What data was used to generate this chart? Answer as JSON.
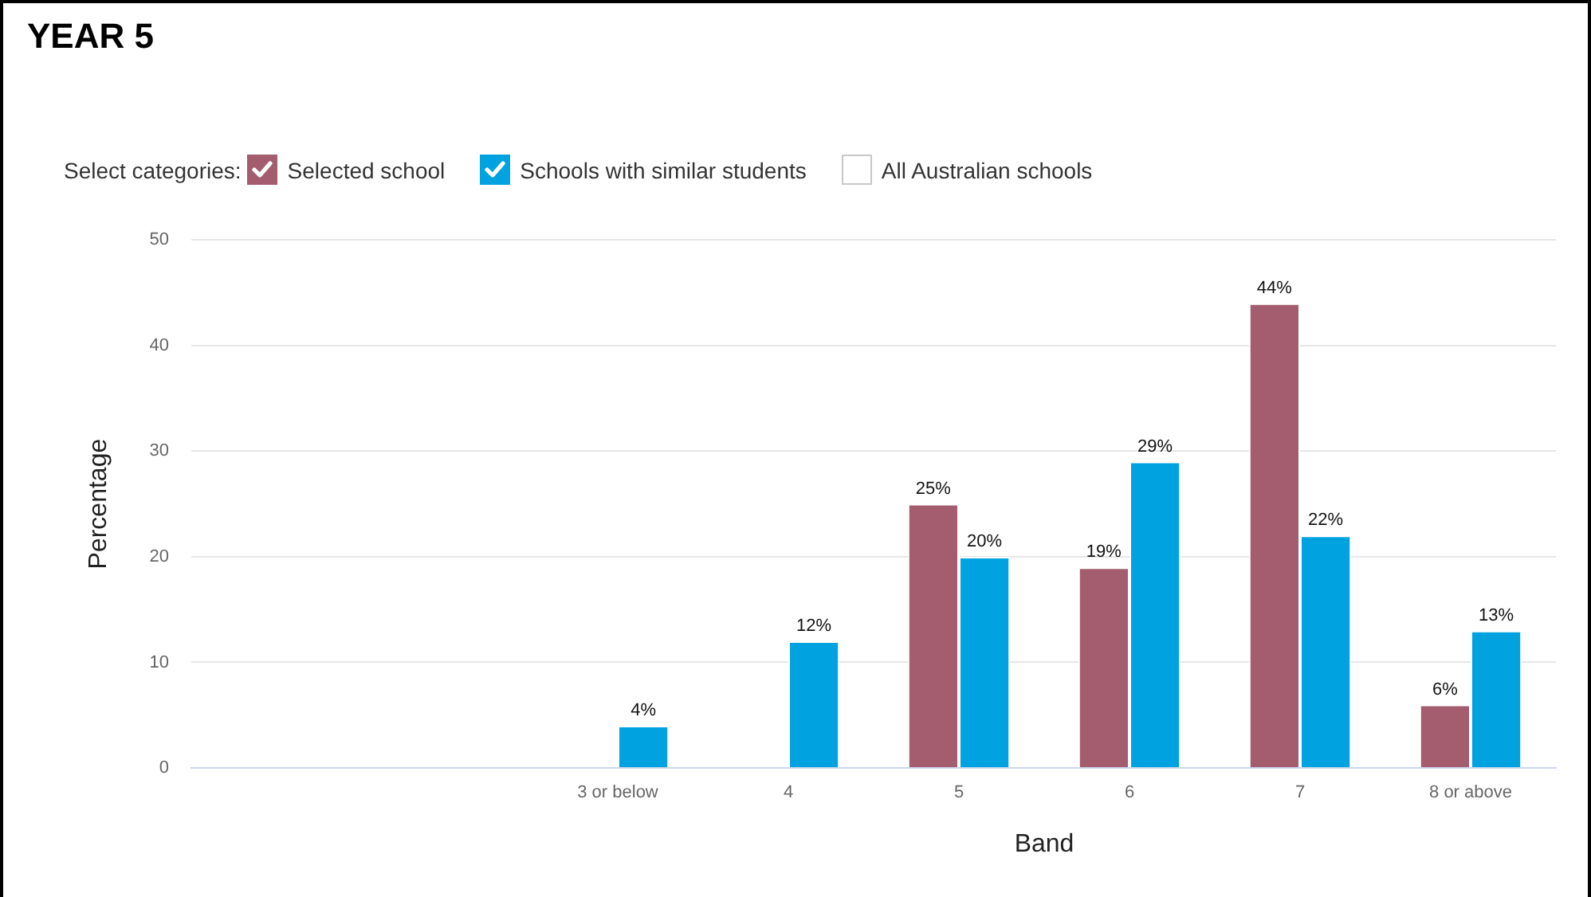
{
  "chart_data": {
    "type": "bar",
    "title": "YEAR 5",
    "legend_title": "Select categories:",
    "legend": "top left",
    "xlabel": "Band",
    "ylabel": "Percentage",
    "categories": [
      null,
      null,
      "3 or below",
      "4",
      "5",
      "6",
      "7",
      "8 or above"
    ],
    "series": [
      {
        "name": "Selected school",
        "color": "#a35d6e",
        "values": [
          null,
          null,
          null,
          null,
          25,
          19,
          44,
          6
        ],
        "value_labels": [
          null,
          null,
          null,
          null,
          "25%",
          "19%",
          "44%",
          "6%"
        ]
      },
      {
        "name": "Schools with similar students",
        "color": "#00a3e0",
        "values": [
          null,
          null,
          4,
          12,
          20,
          29,
          22,
          13
        ],
        "value_labels": [
          null,
          null,
          "4%",
          "12%",
          "20%",
          "29%",
          "22%",
          "13%"
        ]
      },
      {
        "name": "All Australian schools",
        "values": [
          null,
          null,
          null,
          null,
          null,
          null,
          null,
          null
        ]
      }
    ],
    "ylim": [
      0,
      50
    ],
    "yticks": [
      0,
      10,
      20,
      30,
      40,
      50
    ],
    "grid": "y"
  }
}
